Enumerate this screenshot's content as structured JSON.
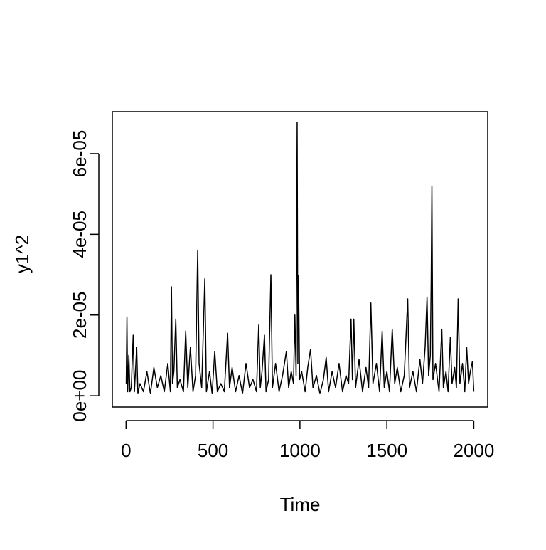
{
  "chart_data": {
    "type": "line",
    "xlabel": "Time",
    "ylabel": "y1^2",
    "color": "#000000",
    "x": [
      1,
      5,
      9,
      16,
      22,
      30,
      41,
      48,
      61,
      68,
      80,
      100,
      120,
      140,
      160,
      180,
      200,
      220,
      240,
      255,
      261,
      267,
      275,
      286,
      295,
      310,
      330,
      343,
      355,
      370,
      385,
      400,
      412,
      420,
      435,
      453,
      462,
      480,
      495,
      510,
      525,
      545,
      565,
      584,
      595,
      610,
      630,
      650,
      670,
      690,
      710,
      730,
      750,
      763,
      772,
      782,
      796,
      805,
      820,
      833,
      842,
      860,
      880,
      900,
      922,
      935,
      950,
      963,
      971,
      978,
      984,
      988,
      992,
      998,
      1010,
      1030,
      1045,
      1061,
      1075,
      1095,
      1115,
      1135,
      1151,
      1165,
      1185,
      1205,
      1225,
      1245,
      1265,
      1280,
      1294,
      1302,
      1310,
      1320,
      1340,
      1360,
      1380,
      1395,
      1408,
      1420,
      1440,
      1458,
      1473,
      1485,
      1500,
      1515,
      1531,
      1545,
      1560,
      1580,
      1600,
      1620,
      1630,
      1650,
      1670,
      1690,
      1705,
      1720,
      1731,
      1740,
      1750,
      1755,
      1759,
      1765,
      1780,
      1800,
      1816,
      1825,
      1840,
      1852,
      1865,
      1875,
      1890,
      1900,
      1910,
      1920,
      1935,
      1948,
      1959,
      1970,
      1980,
      1992,
      2000
    ],
    "values": [
      3e-06,
      1.95e-05,
      1e-06,
      1e-05,
      1e-06,
      2e-06,
      1.5e-05,
      1e-06,
      1.2e-05,
      5e-07,
      3e-06,
      1e-06,
      6e-06,
      5e-07,
      7e-06,
      2e-06,
      5e-06,
      1e-06,
      8e-06,
      1e-06,
      2.7e-05,
      3e-06,
      6e-06,
      1.9e-05,
      2e-06,
      4e-06,
      1e-06,
      1.6e-05,
      2e-06,
      1.2e-05,
      1e-06,
      5e-06,
      3.6e-05,
      8e-06,
      2e-06,
      2.9e-05,
      1e-06,
      6e-06,
      5e-07,
      1.1e-05,
      1e-06,
      3e-06,
      1e-06,
      1.55e-05,
      2e-06,
      7e-06,
      1e-06,
      5e-06,
      5e-07,
      8e-06,
      2e-06,
      4e-06,
      1e-06,
      1.75e-05,
      2e-06,
      6e-06,
      1.5e-05,
      1e-06,
      4e-06,
      3e-05,
      2e-06,
      8e-06,
      1e-06,
      5e-06,
      1.1e-05,
      2e-06,
      6e-06,
      3e-06,
      2e-05,
      5e-06,
      6.78e-05,
      8e-06,
      2.97e-05,
      4e-06,
      6e-06,
      1e-06,
      7e-06,
      1.15e-05,
      2e-06,
      5e-06,
      5e-07,
      4e-06,
      9.5e-06,
      1e-06,
      6e-06,
      2e-06,
      8e-06,
      1e-06,
      5e-06,
      3e-06,
      1.9e-05,
      4e-06,
      1.9e-05,
      2e-06,
      9e-06,
      1e-06,
      7e-06,
      2e-06,
      2.3e-05,
      3e-06,
      8e-06,
      1e-06,
      1.6e-05,
      2e-06,
      6e-06,
      1e-06,
      1.65e-05,
      3e-06,
      7e-06,
      1e-06,
      5e-06,
      2.4e-05,
      2e-06,
      6e-06,
      1e-06,
      9e-06,
      3e-06,
      1.2e-05,
      2.45e-05,
      5e-06,
      1e-05,
      2.9e-05,
      5.2e-05,
      4e-06,
      8e-06,
      1e-06,
      1.65e-05,
      2e-06,
      6e-06,
      1e-06,
      1.45e-05,
      3e-06,
      7e-06,
      2e-06,
      2.4e-05,
      3e-06,
      8e-06,
      1e-06,
      1.2e-05,
      3e-06,
      6e-06,
      8.5e-06,
      1e-06
    ],
    "xlim": [
      -79,
      2080
    ],
    "xticks": [
      0,
      500,
      1000,
      1500,
      2000
    ],
    "ylim": [
      -2.8e-06,
      7.04e-05
    ],
    "yticks": [
      {
        "value": 0,
        "label": "0e+00"
      },
      {
        "value": 2e-05,
        "label": "2e-05"
      },
      {
        "value": 4e-05,
        "label": "4e-05"
      },
      {
        "value": 6e-05,
        "label": "6e-05"
      }
    ]
  }
}
